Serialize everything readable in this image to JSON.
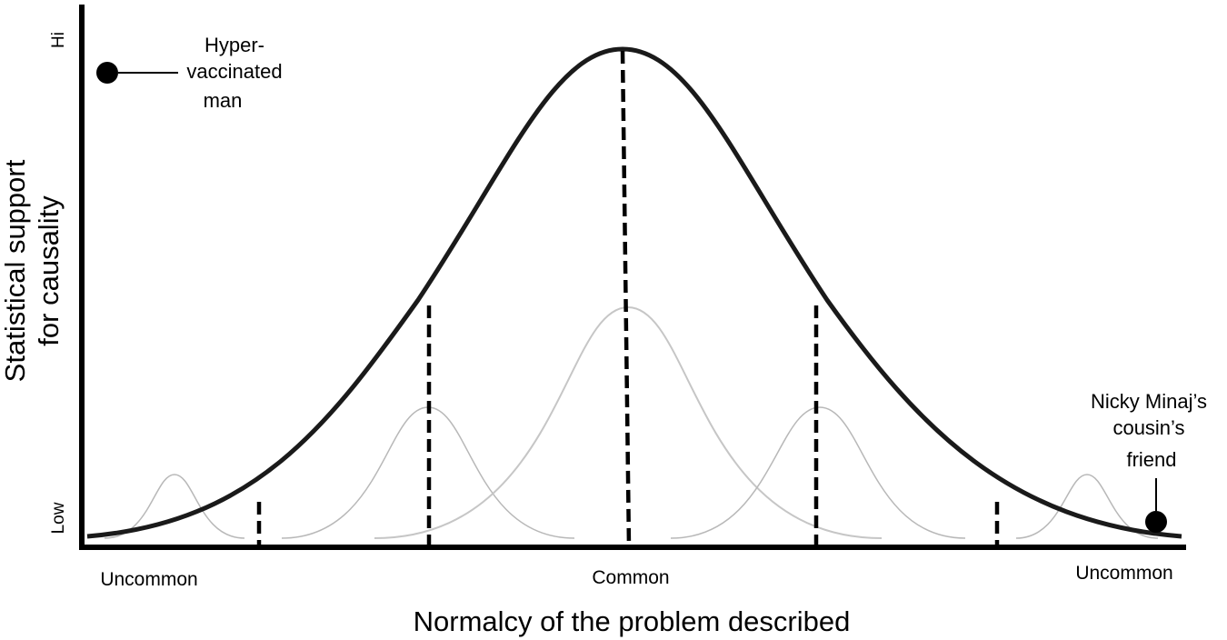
{
  "diagram": {
    "x_axis_title": "Normalcy of the problem described",
    "y_axis_title_lines": [
      "Statistical support",
      "for causality"
    ],
    "y_ticks": {
      "high": "Hi",
      "low": "Low"
    },
    "x_categories": {
      "left": "Uncommon",
      "center": "Common",
      "right": "Uncommon"
    },
    "annotations": {
      "left_point": [
        "Hyper-",
        "vaccinated",
        "man"
      ],
      "right_point": [
        "Nicky Minaj’s",
        "cousin’s",
        "friend"
      ]
    },
    "colors": {
      "main_curve": "#000000",
      "small_curves": "#b8b8b8",
      "axis": "#000000",
      "background": "#ffffff"
    }
  }
}
